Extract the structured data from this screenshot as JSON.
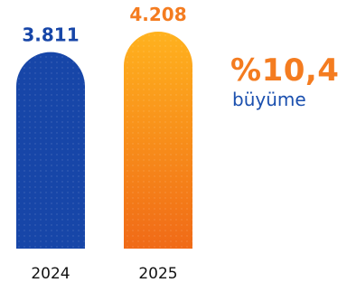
{
  "chart_data": {
    "type": "bar",
    "categories": [
      "2024",
      "2025"
    ],
    "values": [
      3811,
      4208
    ],
    "value_labels": [
      "3.811",
      "4.208"
    ],
    "colors": {
      "bar_2024": "#1746a8",
      "bar_2025_top": "#ffb21e",
      "bar_2025_bottom": "#f06a17",
      "label_2024": "#1746a8",
      "label_2025": "#f47c20"
    }
  },
  "growth": {
    "value": "%10,4",
    "label": "büyüme"
  }
}
